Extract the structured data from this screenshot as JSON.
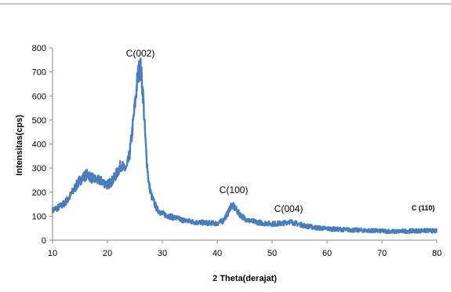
{
  "chart_data": {
    "type": "line",
    "xlabel": "2 Theta(derajat)",
    "ylabel": "Intensitas(cps)",
    "xlim": [
      10,
      80
    ],
    "ylim": [
      0,
      800
    ],
    "x_ticks": [
      10,
      20,
      30,
      40,
      50,
      60,
      70,
      80
    ],
    "y_ticks": [
      0,
      100,
      200,
      300,
      400,
      500,
      600,
      700,
      800
    ],
    "grid": false,
    "legend": "none",
    "series_color": "#4a7ebb",
    "series": [
      {
        "x": [
          10,
          11,
          12,
          13,
          14,
          15,
          16,
          16.5,
          17,
          18,
          19,
          20,
          21,
          22,
          22.5,
          23,
          23.5,
          24,
          24.5,
          25,
          25.5,
          26,
          26.5,
          27,
          27.5,
          28,
          29,
          30,
          32,
          34,
          36,
          38,
          40,
          41,
          42,
          42.5,
          43,
          43.5,
          44,
          45,
          46,
          48,
          50,
          52,
          53,
          54,
          56,
          58,
          60,
          62,
          65,
          68,
          70,
          72,
          75,
          78,
          80
        ],
        "y": [
          125,
          135,
          150,
          175,
          215,
          250,
          270,
          275,
          260,
          250,
          245,
          230,
          250,
          290,
          315,
          295,
          300,
          350,
          450,
          560,
          680,
          730,
          600,
          380,
          240,
          185,
          130,
          110,
          95,
          82,
          75,
          72,
          70,
          80,
          115,
          145,
          140,
          125,
          110,
          90,
          80,
          72,
          68,
          70,
          78,
          72,
          60,
          52,
          48,
          45,
          42,
          40,
          38,
          36,
          38,
          40,
          38
        ]
      }
    ],
    "annotations": [
      {
        "text": "C(002)",
        "x": 26
      },
      {
        "text": "C(100)",
        "x": 43
      },
      {
        "text": "C(004)",
        "x": 53
      },
      {
        "text": "C (110)",
        "x": 77.5
      }
    ]
  }
}
